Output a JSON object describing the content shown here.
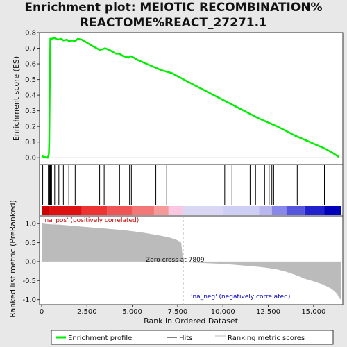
{
  "title_line1": "Enrichment plot: MEIOTIC RECOMBINATION%",
  "title_line2": "REACTOME%REACT_27271.1",
  "colors": {
    "profile": "#00ee00",
    "hits": "#000000",
    "metric": "#bbbbbb",
    "pos_label": "#cc0000",
    "neg_label": "#0000cc"
  },
  "chart_data": [
    {
      "type": "line",
      "name": "enrichment-profile",
      "ylabel": "Enrichment score (ES)",
      "xlim": [
        0,
        16500
      ],
      "ylim": [
        -0.03,
        0.8
      ],
      "yticks": [
        "0.0",
        "0.1",
        "0.2",
        "0.3",
        "0.4",
        "0.5",
        "0.6",
        "0.7",
        "0.8"
      ],
      "x": [
        0,
        330,
        400,
        420,
        450,
        480,
        520,
        700,
        900,
        1100,
        1200,
        1400,
        1500,
        1700,
        1850,
        2000,
        2200,
        2500,
        2800,
        3200,
        3400,
        3500,
        3800,
        4100,
        4300,
        4500,
        4800,
        4900,
        5000,
        5300,
        5800,
        6200,
        6300,
        6600,
        6900,
        7200,
        7600,
        8000,
        8500,
        9000,
        9500,
        10000,
        10500,
        11000,
        11500,
        12000,
        12500,
        12700,
        13000,
        13500,
        14000,
        14500,
        15000,
        15500,
        15600,
        16000,
        16400
      ],
      "y": [
        0.01,
        0.0,
        0.02,
        0.1,
        0.5,
        0.76,
        0.76,
        0.765,
        0.755,
        0.76,
        0.75,
        0.755,
        0.745,
        0.75,
        0.745,
        0.76,
        0.755,
        0.735,
        0.715,
        0.69,
        0.695,
        0.7,
        0.685,
        0.665,
        0.665,
        0.65,
        0.64,
        0.65,
        0.645,
        0.625,
        0.6,
        0.58,
        0.575,
        0.56,
        0.55,
        0.54,
        0.515,
        0.49,
        0.46,
        0.43,
        0.4,
        0.37,
        0.34,
        0.31,
        0.28,
        0.25,
        0.225,
        0.215,
        0.2,
        0.17,
        0.14,
        0.115,
        0.09,
        0.065,
        0.06,
        0.035,
        0.005
      ]
    },
    {
      "type": "bar",
      "name": "hits",
      "x": [
        60,
        370,
        400,
        420,
        460,
        490,
        550,
        720,
        950,
        1200,
        1500,
        1850,
        3200,
        3450,
        4300,
        4850,
        4950,
        6300,
        6900,
        10100,
        10500,
        11500,
        11800,
        12300,
        12550,
        12700,
        12800,
        14100,
        15600
      ]
    },
    {
      "type": "area",
      "name": "ranking-metric",
      "ylabel": "Ranked list metric (PreRanked)",
      "xlabel": "Rank in Ordered Dataset",
      "xlim": [
        0,
        16500
      ],
      "ylim": [
        -1.08,
        1.15
      ],
      "xticks": [
        "0",
        "2,500",
        "5,000",
        "7,500",
        "10,000",
        "12,500",
        "15,000"
      ],
      "yticks": [
        "1.0",
        "0.5",
        "0.0",
        "-0.5",
        "-1.0"
      ],
      "x": [
        0,
        100,
        300,
        500,
        1000,
        1500,
        2000,
        2500,
        3000,
        3500,
        4000,
        4500,
        5000,
        5500,
        6000,
        6500,
        7000,
        7300,
        7500,
        7700,
        7809,
        8000,
        9000,
        10000,
        10500,
        11000,
        11500,
        12000,
        12500,
        13000,
        13500,
        14000,
        14500,
        15000,
        15500,
        16000,
        16300,
        16400,
        16500
      ],
      "y": [
        1.05,
        1.0,
        0.99,
        0.98,
        0.97,
        0.95,
        0.93,
        0.91,
        0.89,
        0.87,
        0.85,
        0.83,
        0.8,
        0.77,
        0.73,
        0.69,
        0.64,
        0.6,
        0.56,
        0.5,
        0.0,
        -0.02,
        -0.04,
        -0.06,
        -0.08,
        -0.1,
        -0.12,
        -0.14,
        -0.17,
        -0.21,
        -0.27,
        -0.35,
        -0.45,
        -0.52,
        -0.6,
        -0.72,
        -0.85,
        -0.95,
        -1.0
      ]
    }
  ],
  "annotations": {
    "pos_label": "'na_pos' (positively correlated)",
    "neg_label": "'na_neg' (negatively correlated)",
    "zero_cross": "Zero cross at 7809",
    "zero_cross_x": 7809
  },
  "legend": {
    "profile": "Enrichment profile",
    "hits": "Hits",
    "metric": "Ranking metric scores"
  }
}
